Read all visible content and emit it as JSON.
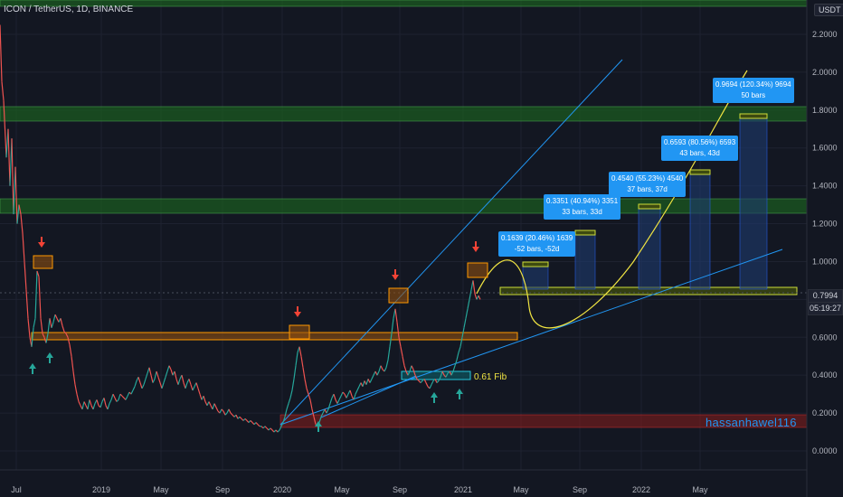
{
  "header": {
    "title": "ICON / TetherUS, 1D, BINANCE",
    "unit": "USDT"
  },
  "watermark": "hassanhawel116",
  "current": {
    "price": "0.7994",
    "countdown": "05:19:27"
  },
  "fib_label": "0.61 Fib",
  "measure_labels": [
    {
      "line1": "0.1639 (20.46%) 1639",
      "line2": "-52 bars, -52d"
    },
    {
      "line1": "0.3351 (40.94%) 3351",
      "line2": "33 bars, 33d"
    },
    {
      "line1": "0.4540 (55.23%) 4540",
      "line2": "37 bars, 37d"
    },
    {
      "line1": "0.6593 (80.56%) 6593",
      "line2": "43 bars, 43d"
    },
    {
      "line1": "0.9694 (120.34%) 9694",
      "line2": "50 bars"
    }
  ],
  "chart_data": {
    "type": "line",
    "title": "ICON / TetherUS, 1D, BINANCE",
    "xlabel": "",
    "ylabel": "",
    "ylim": [
      -0.1,
      2.3
    ],
    "y_ticks": [
      "0.0000",
      "0.2000",
      "0.4000",
      "0.6000",
      "0.8000",
      "1.0000",
      "1.2000",
      "1.4000",
      "1.6000",
      "1.8000",
      "2.0000",
      "2.2000"
    ],
    "y_tick_values": [
      0,
      0.2,
      0.4,
      0.6,
      0.8,
      1.0,
      1.2,
      1.4,
      1.6,
      1.8,
      2.0,
      2.2
    ],
    "x_ticks": [
      "Jul",
      "2019",
      "May",
      "Sep",
      "2020",
      "May",
      "Sep",
      "2021",
      "May",
      "Sep",
      "2022",
      "May"
    ],
    "grid": true,
    "series": [
      {
        "values": [
          [
            0,
            2.25
          ],
          [
            2,
            1.95
          ],
          [
            4,
            1.85
          ],
          [
            7,
            1.55
          ],
          [
            9,
            1.7
          ],
          [
            11,
            1.4
          ],
          [
            13,
            1.65
          ],
          [
            15,
            1.25
          ],
          [
            17,
            1.5
          ],
          [
            19,
            1.2
          ],
          [
            21,
            1.3
          ],
          [
            23,
            1.25
          ],
          [
            25,
            1.15
          ],
          [
            27,
            1.0
          ],
          [
            29,
            0.85
          ],
          [
            31,
            0.7
          ],
          [
            33,
            0.6
          ],
          [
            35,
            0.55
          ],
          [
            37,
            0.65
          ],
          [
            39,
            0.7
          ],
          [
            41,
            0.95
          ],
          [
            43,
            0.92
          ],
          [
            45,
            0.7
          ],
          [
            47,
            0.62
          ],
          [
            49,
            0.6
          ],
          [
            51,
            0.57
          ],
          [
            53,
            0.62
          ],
          [
            55,
            0.7
          ],
          [
            57,
            0.65
          ],
          [
            59,
            0.68
          ],
          [
            61,
            0.72
          ],
          [
            63,
            0.7
          ],
          [
            65,
            0.68
          ],
          [
            67,
            0.7
          ],
          [
            69,
            0.66
          ],
          [
            71,
            0.63
          ],
          [
            73,
            0.62
          ],
          [
            75,
            0.6
          ],
          [
            77,
            0.56
          ],
          [
            79,
            0.5
          ],
          [
            81,
            0.42
          ],
          [
            83,
            0.35
          ],
          [
            85,
            0.3
          ],
          [
            87,
            0.26
          ],
          [
            89,
            0.24
          ],
          [
            91,
            0.22
          ],
          [
            93,
            0.26
          ],
          [
            95,
            0.24
          ],
          [
            97,
            0.22
          ],
          [
            99,
            0.27
          ],
          [
            101,
            0.24
          ],
          [
            103,
            0.22
          ],
          [
            105,
            0.25
          ],
          [
            107,
            0.27
          ],
          [
            109,
            0.24
          ],
          [
            111,
            0.23
          ],
          [
            113,
            0.26
          ],
          [
            115,
            0.28
          ],
          [
            117,
            0.24
          ],
          [
            119,
            0.22
          ],
          [
            121,
            0.25
          ],
          [
            123,
            0.27
          ],
          [
            125,
            0.3
          ],
          [
            127,
            0.28
          ],
          [
            129,
            0.26
          ],
          [
            131,
            0.27
          ],
          [
            133,
            0.3
          ],
          [
            135,
            0.29
          ],
          [
            137,
            0.28
          ],
          [
            139,
            0.27
          ],
          [
            141,
            0.29
          ],
          [
            143,
            0.31
          ],
          [
            145,
            0.3
          ],
          [
            147,
            0.32
          ],
          [
            149,
            0.34
          ],
          [
            151,
            0.37
          ],
          [
            153,
            0.39
          ],
          [
            155,
            0.36
          ],
          [
            157,
            0.33
          ],
          [
            159,
            0.35
          ],
          [
            161,
            0.38
          ],
          [
            163,
            0.41
          ],
          [
            165,
            0.44
          ],
          [
            167,
            0.4
          ],
          [
            169,
            0.36
          ],
          [
            171,
            0.38
          ],
          [
            173,
            0.42
          ],
          [
            175,
            0.39
          ],
          [
            177,
            0.36
          ],
          [
            179,
            0.33
          ],
          [
            181,
            0.36
          ],
          [
            183,
            0.39
          ],
          [
            185,
            0.42
          ],
          [
            187,
            0.45
          ],
          [
            189,
            0.43
          ],
          [
            191,
            0.4
          ],
          [
            193,
            0.42
          ],
          [
            195,
            0.38
          ],
          [
            197,
            0.35
          ],
          [
            199,
            0.38
          ],
          [
            201,
            0.4
          ],
          [
            203,
            0.36
          ],
          [
            205,
            0.33
          ],
          [
            207,
            0.36
          ],
          [
            209,
            0.38
          ],
          [
            211,
            0.35
          ],
          [
            213,
            0.32
          ],
          [
            215,
            0.34
          ],
          [
            217,
            0.36
          ],
          [
            219,
            0.33
          ],
          [
            221,
            0.3
          ],
          [
            223,
            0.27
          ],
          [
            225,
            0.29
          ],
          [
            227,
            0.26
          ],
          [
            229,
            0.24
          ],
          [
            231,
            0.26
          ],
          [
            233,
            0.24
          ],
          [
            235,
            0.22
          ],
          [
            237,
            0.25
          ],
          [
            239,
            0.23
          ],
          [
            241,
            0.21
          ],
          [
            243,
            0.2
          ],
          [
            245,
            0.22
          ],
          [
            247,
            0.21
          ],
          [
            249,
            0.19
          ],
          [
            251,
            0.2
          ],
          [
            253,
            0.22
          ],
          [
            255,
            0.2
          ],
          [
            257,
            0.19
          ],
          [
            259,
            0.18
          ],
          [
            261,
            0.19
          ],
          [
            263,
            0.17
          ],
          [
            265,
            0.18
          ],
          [
            267,
            0.17
          ],
          [
            269,
            0.16
          ],
          [
            271,
            0.17
          ],
          [
            273,
            0.16
          ],
          [
            275,
            0.15
          ],
          [
            277,
            0.16
          ],
          [
            279,
            0.15
          ],
          [
            281,
            0.14
          ],
          [
            283,
            0.15
          ],
          [
            285,
            0.14
          ],
          [
            287,
            0.13
          ],
          [
            289,
            0.13
          ],
          [
            291,
            0.12
          ],
          [
            293,
            0.13
          ],
          [
            295,
            0.12
          ],
          [
            297,
            0.11
          ],
          [
            299,
            0.12
          ],
          [
            301,
            0.11
          ],
          [
            303,
            0.1
          ],
          [
            305,
            0.11
          ],
          [
            307,
            0.1
          ],
          [
            309,
            0.11
          ],
          [
            311,
            0.13
          ],
          [
            313,
            0.15
          ],
          [
            315,
            0.18
          ],
          [
            317,
            0.22
          ],
          [
            319,
            0.25
          ],
          [
            321,
            0.28
          ],
          [
            323,
            0.32
          ],
          [
            325,
            0.38
          ],
          [
            327,
            0.45
          ],
          [
            329,
            0.52
          ],
          [
            331,
            0.55
          ],
          [
            333,
            0.5
          ],
          [
            335,
            0.44
          ],
          [
            337,
            0.38
          ],
          [
            339,
            0.33
          ],
          [
            341,
            0.3
          ],
          [
            343,
            0.27
          ],
          [
            345,
            0.22
          ],
          [
            347,
            0.18
          ],
          [
            349,
            0.14
          ],
          [
            351,
            0.13
          ],
          [
            353,
            0.15
          ],
          [
            355,
            0.18
          ],
          [
            357,
            0.2
          ],
          [
            359,
            0.22
          ],
          [
            361,
            0.2
          ],
          [
            363,
            0.22
          ],
          [
            365,
            0.25
          ],
          [
            367,
            0.28
          ],
          [
            369,
            0.3
          ],
          [
            371,
            0.27
          ],
          [
            373,
            0.25
          ],
          [
            375,
            0.27
          ],
          [
            377,
            0.29
          ],
          [
            379,
            0.31
          ],
          [
            381,
            0.3
          ],
          [
            383,
            0.28
          ],
          [
            385,
            0.3
          ],
          [
            387,
            0.32
          ],
          [
            389,
            0.29
          ],
          [
            391,
            0.27
          ],
          [
            393,
            0.3
          ],
          [
            395,
            0.32
          ],
          [
            397,
            0.34
          ],
          [
            399,
            0.36
          ],
          [
            401,
            0.34
          ],
          [
            403,
            0.37
          ],
          [
            405,
            0.35
          ],
          [
            407,
            0.38
          ],
          [
            409,
            0.36
          ],
          [
            411,
            0.38
          ],
          [
            413,
            0.4
          ],
          [
            415,
            0.42
          ],
          [
            417,
            0.4
          ],
          [
            419,
            0.42
          ],
          [
            421,
            0.45
          ],
          [
            423,
            0.43
          ],
          [
            425,
            0.42
          ],
          [
            427,
            0.44
          ],
          [
            429,
            0.48
          ],
          [
            431,
            0.55
          ],
          [
            433,
            0.62
          ],
          [
            435,
            0.7
          ],
          [
            437,
            0.75
          ],
          [
            439,
            0.68
          ],
          [
            441,
            0.6
          ],
          [
            443,
            0.55
          ],
          [
            445,
            0.5
          ],
          [
            447,
            0.45
          ],
          [
            449,
            0.42
          ],
          [
            451,
            0.4
          ],
          [
            453,
            0.42
          ],
          [
            455,
            0.45
          ],
          [
            457,
            0.43
          ],
          [
            459,
            0.4
          ],
          [
            461,
            0.38
          ],
          [
            463,
            0.37
          ],
          [
            465,
            0.36
          ],
          [
            467,
            0.37
          ],
          [
            469,
            0.38
          ],
          [
            471,
            0.36
          ],
          [
            473,
            0.34
          ],
          [
            475,
            0.33
          ],
          [
            477,
            0.35
          ],
          [
            479,
            0.37
          ],
          [
            481,
            0.38
          ],
          [
            483,
            0.36
          ],
          [
            485,
            0.37
          ],
          [
            487,
            0.39
          ],
          [
            489,
            0.42
          ],
          [
            491,
            0.4
          ],
          [
            493,
            0.39
          ],
          [
            495,
            0.41
          ],
          [
            497,
            0.42
          ],
          [
            499,
            0.4
          ],
          [
            501,
            0.42
          ],
          [
            503,
            0.45
          ],
          [
            505,
            0.48
          ],
          [
            507,
            0.52
          ],
          [
            509,
            0.55
          ],
          [
            511,
            0.6
          ],
          [
            513,
            0.65
          ],
          [
            515,
            0.7
          ],
          [
            517,
            0.75
          ],
          [
            519,
            0.8
          ],
          [
            521,
            0.85
          ],
          [
            523,
            0.9
          ],
          [
            525,
            0.83
          ],
          [
            527,
            0.8
          ],
          [
            529,
            0.82
          ],
          [
            531,
            0.8
          ]
        ]
      }
    ]
  }
}
